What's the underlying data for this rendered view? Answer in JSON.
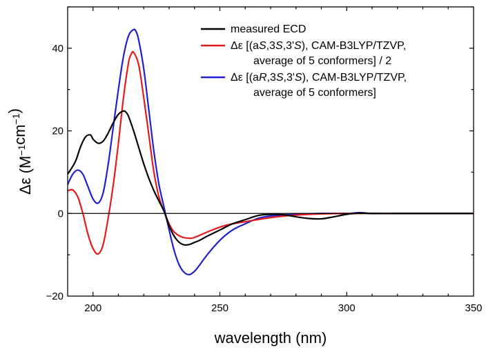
{
  "chart_data": {
    "type": "line",
    "xlabel": "wavelength (nm)",
    "ylabel": "Δε (M⁻¹cm⁻¹)",
    "xlim": [
      190,
      350
    ],
    "ylim": [
      -20,
      50
    ],
    "xticks": [
      200,
      250,
      300,
      350
    ],
    "yticks": [
      -20,
      0,
      20,
      40
    ],
    "zero_line": true,
    "legend_position": "top-right",
    "series": [
      {
        "name": "measured ECD",
        "legend_lines": [
          "measured ECD"
        ],
        "color": "#000000",
        "x": [
          190,
          193,
          195,
          197,
          199,
          200,
          202,
          204,
          206,
          208,
          210,
          212,
          213,
          214,
          216,
          218,
          220,
          222,
          224,
          226,
          228,
          230,
          232,
          234,
          236,
          238,
          240,
          242,
          245,
          250,
          255,
          260,
          265,
          270,
          275,
          280,
          285,
          290,
          295,
          300,
          305,
          310,
          320,
          330,
          340,
          350
        ],
        "values": [
          9.5,
          12.5,
          16,
          18.5,
          19,
          18,
          17,
          17.5,
          19.5,
          22,
          24,
          24.8,
          24.5,
          23.5,
          20,
          16,
          12,
          8.5,
          5.5,
          3,
          0.5,
          -3,
          -5.5,
          -7,
          -7.6,
          -7.5,
          -7,
          -6.5,
          -5.5,
          -4,
          -2.5,
          -1.5,
          -0.5,
          -0.2,
          -0.3,
          -0.8,
          -1.2,
          -1.3,
          -0.8,
          -0.2,
          0.1,
          0,
          0,
          0,
          0,
          0
        ]
      },
      {
        "name": "Δε [(aS,3S,3'S), CAM-B3LYP/TZVP, average of 5 conformers] / 2",
        "legend_lines": [
          "Δε [(aS,3S,3'S), CAM-B3LYP/TZVP,",
          "average of 5 conformers] / 2"
        ],
        "color": "#e31a1c",
        "x": [
          190,
          192,
          194,
          196,
          198,
          200,
          202,
          204,
          206,
          208,
          210,
          212,
          214,
          215,
          216,
          218,
          220,
          222,
          224,
          226,
          228,
          230,
          232,
          235,
          238,
          240,
          245,
          250,
          255,
          260,
          270,
          280,
          290,
          300,
          310,
          320,
          330,
          340,
          350
        ],
        "values": [
          5.5,
          5.7,
          4,
          0,
          -5,
          -8.5,
          -9.8,
          -7.5,
          -1,
          7,
          17,
          28,
          36.5,
          38.5,
          39,
          36,
          28,
          19,
          10,
          4,
          0.5,
          -2.5,
          -4.5,
          -5.7,
          -6,
          -5.8,
          -4.5,
          -3.3,
          -2.5,
          -2,
          -1,
          -0.4,
          -0.1,
          0,
          0,
          0,
          0,
          0,
          0
        ]
      },
      {
        "name": "Δε [(aR,3S,3'S), CAM-B3LYP/TZVP, average of 5 conformers]",
        "legend_lines": [
          "Δε [(aR,3S,3'S), CAM-B3LYP/TZVP,",
          "average of 5 conformers]"
        ],
        "color": "#1f1fd0",
        "x": [
          190,
          192,
          194,
          196,
          198,
          200,
          202,
          204,
          206,
          208,
          210,
          212,
          214,
          216,
          217,
          218,
          220,
          222,
          224,
          226,
          228,
          230,
          232,
          234,
          236,
          238,
          240,
          242,
          245,
          250,
          255,
          260,
          265,
          270,
          280,
          290,
          300,
          305,
          310,
          320,
          330,
          340,
          350
        ],
        "values": [
          7,
          9.5,
          10.5,
          9.5,
          6.5,
          3.5,
          2.5,
          5,
          12,
          21,
          30,
          38,
          43,
          44.5,
          44,
          42,
          35,
          25,
          15,
          7,
          1.5,
          -4,
          -9,
          -12.5,
          -14.3,
          -14.8,
          -14,
          -12.5,
          -10,
          -6.5,
          -4,
          -2.5,
          -1.2,
          -0.6,
          -0.2,
          0,
          0,
          0.2,
          0,
          0,
          0,
          0,
          0
        ]
      }
    ]
  }
}
